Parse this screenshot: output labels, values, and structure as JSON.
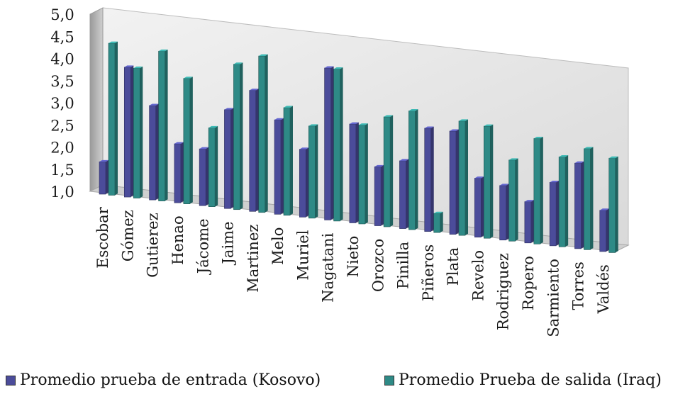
{
  "chart_data": {
    "type": "bar",
    "categories": [
      "Escobar",
      "Gómez",
      "Gutierez",
      "Henao",
      "Jácome",
      "Jaime",
      "Martinez",
      "Melo",
      "Muriel",
      "Nagatani",
      "Nieto",
      "Orozco",
      "Pinilla",
      "Piñeros",
      "Plata",
      "Revelo",
      "Rodriguez",
      "Ropero",
      "Sarmiento",
      "Torres",
      "Valdés"
    ],
    "series": [
      {
        "name": "Promedio prueba de entrada (Kosovo)",
        "color": "#4b4c9a",
        "values": [
          1.7,
          3.9,
          3.1,
          2.3,
          2.25,
          3.2,
          3.7,
          3.1,
          2.5,
          4.4,
          3.2,
          2.3,
          2.5,
          3.3,
          3.3,
          2.3,
          2.2,
          1.9,
          2.4,
          2.9,
          1.9
        ]
      },
      {
        "name": "Promedio Prueba de salida (Iraq)",
        "color": "#2e8a86",
        "values": [
          4.4,
          3.9,
          4.35,
          3.8,
          2.75,
          4.25,
          4.5,
          3.4,
          3.05,
          4.4,
          3.2,
          3.45,
          3.65,
          1.4,
          3.55,
          3.5,
          2.8,
          3.35,
          3.0,
          3.25,
          3.1
        ]
      }
    ],
    "ylim": [
      1.0,
      5.0
    ],
    "yticks": [
      "1,0",
      "1,5",
      "2,0",
      "2,5",
      "3,0",
      "3,5",
      "4,0",
      "4,5",
      "5,0"
    ],
    "grid": false,
    "legend_position": "bottom",
    "style": "3d-clustered-column"
  }
}
